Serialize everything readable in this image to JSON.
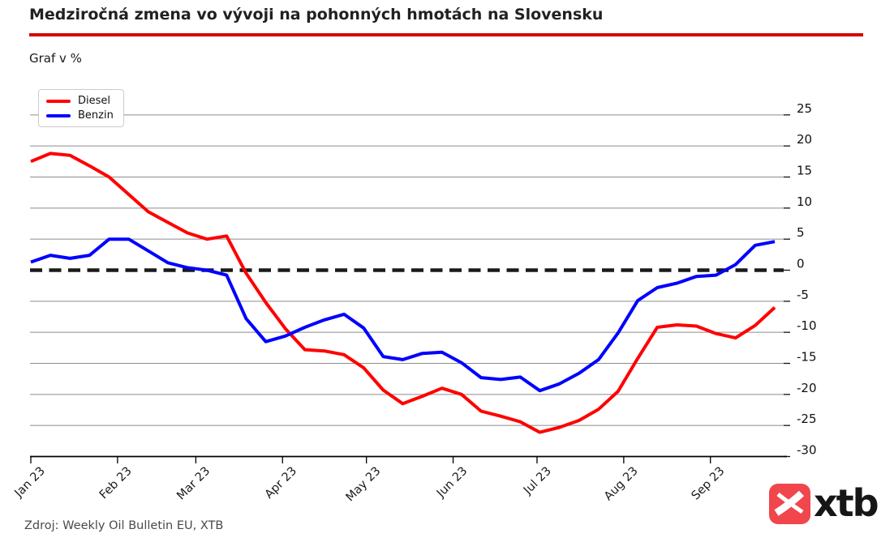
{
  "header": {
    "title": "Medziročná zmena vo vývoji na pohonných hmotách na Slovensku",
    "accent_color": "#d40000"
  },
  "subtitle": "Graf v %",
  "source": "Zdroj: Weekly Oil Bulletin EU, XTB",
  "logo": {
    "text": "xtb",
    "box_color": "#f0464c",
    "mark": "xtb-x-icon"
  },
  "chart_data": {
    "type": "line",
    "title": "Medziročná zmena vo vývoji na pohonných hmotách na Slovensku",
    "unit": "%",
    "grid": true,
    "legend_position": "top-left",
    "y_axis_side": "right",
    "ylim": [
      -30,
      27
    ],
    "y_ticks": [
      25,
      20,
      15,
      10,
      5,
      0,
      -5,
      -10,
      -15,
      -20,
      -25,
      -30
    ],
    "x_tick_labels": [
      "Jan 23",
      "Feb 23",
      "Mar 23",
      "Apr 23",
      "May 23",
      "Jun 23",
      "Jul 23",
      "Aug 23",
      "Sep 23"
    ],
    "x_tick_days": [
      0,
      31,
      59,
      90,
      120,
      151,
      181,
      212,
      243
    ],
    "x_tick_rotation": 45,
    "x_weekly_days": [
      0,
      7,
      14,
      21,
      28,
      35,
      42,
      49,
      56,
      63,
      70,
      77,
      84,
      91,
      98,
      105,
      112,
      119,
      126,
      133,
      140,
      147,
      154,
      161,
      168,
      175,
      182,
      189,
      196,
      203,
      210,
      217,
      224,
      231,
      238,
      245,
      252,
      259,
      266
    ],
    "zero_line": {
      "value": 0,
      "style": "dashed",
      "color": "#1a1a1a"
    },
    "series": [
      {
        "name": "Diesel",
        "color": "#ff0000",
        "values": [
          17.5,
          18.8,
          18.5,
          16.8,
          15.0,
          12.2,
          9.4,
          7.7,
          6.0,
          5.0,
          5.5,
          -0.5,
          -5.2,
          -9.4,
          -12.8,
          -13.0,
          -13.6,
          -15.7,
          -19.3,
          -21.5,
          -20.3,
          -19.0,
          -20.0,
          -22.7,
          -23.5,
          -24.4,
          -26.1,
          -25.3,
          -24.2,
          -22.4,
          -19.5,
          -14.2,
          -9.2,
          -8.8,
          -9.0,
          -10.2,
          -10.9,
          -8.9,
          -6.0
        ]
      },
      {
        "name": "Benzin",
        "color": "#0000ff",
        "values": [
          1.3,
          2.4,
          1.9,
          2.4,
          5.0,
          5.0,
          3.1,
          1.2,
          0.4,
          0.0,
          -0.8,
          -7.8,
          -11.5,
          -10.6,
          -9.2,
          -8.0,
          -7.1,
          -9.3,
          -13.9,
          -14.4,
          -13.4,
          -13.2,
          -14.9,
          -17.3,
          -17.6,
          -17.2,
          -19.4,
          -18.3,
          -16.6,
          -14.4,
          -10.1,
          -4.9,
          -2.8,
          -2.1,
          -1.0,
          -0.8,
          0.9,
          4.0,
          4.6
        ]
      }
    ]
  }
}
